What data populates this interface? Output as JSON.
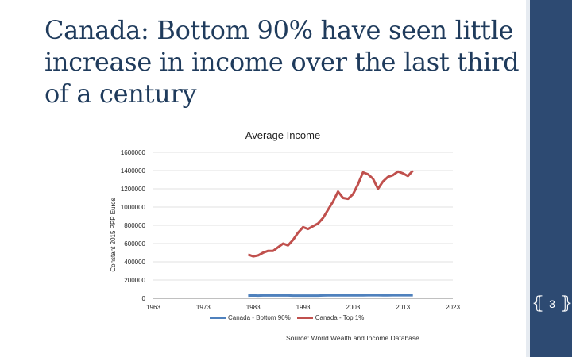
{
  "slide": {
    "title": "Canada:  Bottom 90% have seen little increase in income over the last third of a century",
    "page_number": "3",
    "source": "Source: World Wealth and Income Database"
  },
  "colors": {
    "sidebar": "#2d4a72",
    "title": "#1f3b5c",
    "bottom90": "#4f81bd",
    "top1": "#c0504d"
  },
  "chart_data": {
    "type": "line",
    "title": "Average Income",
    "xlabel": "",
    "ylabel": "Constant 2015 PPP Euros",
    "xlim": [
      1963,
      2023
    ],
    "ylim": [
      0,
      1600000
    ],
    "xticks": [
      "1963",
      "1973",
      "1983",
      "1993",
      "2003",
      "2013",
      "2023"
    ],
    "yticks": [
      "0",
      "200000",
      "400000",
      "600000",
      "800000",
      "1000000",
      "1200000",
      "1400000",
      "1600000"
    ],
    "grid": "horizontal",
    "legend": "bottom",
    "series": [
      {
        "name": "Canada - Bottom 90%",
        "color": "#4f81bd",
        "x": [
          1982,
          1983,
          1984,
          1985,
          1986,
          1987,
          1988,
          1989,
          1990,
          1991,
          1992,
          1993,
          1994,
          1995,
          1996,
          1997,
          1998,
          1999,
          2000,
          2001,
          2002,
          2003,
          2004,
          2005,
          2006,
          2007,
          2008,
          2009,
          2010,
          2011,
          2012,
          2013,
          2014,
          2015
        ],
        "y": [
          30000,
          31000,
          30000,
          31000,
          31000,
          31000,
          31000,
          31000,
          31000,
          30000,
          30000,
          30000,
          30000,
          30000,
          30000,
          31000,
          32000,
          32000,
          33000,
          33000,
          33000,
          33000,
          33000,
          33000,
          34000,
          34000,
          34000,
          33000,
          33000,
          34000,
          34000,
          34000,
          34000,
          34000
        ]
      },
      {
        "name": "Canada - Top 1%",
        "color": "#c0504d",
        "x": [
          1982,
          1983,
          1984,
          1985,
          1986,
          1987,
          1988,
          1989,
          1990,
          1991,
          1992,
          1993,
          1994,
          1995,
          1996,
          1997,
          1998,
          1999,
          2000,
          2001,
          2002,
          2003,
          2004,
          2005,
          2006,
          2007,
          2008,
          2009,
          2010,
          2011,
          2012,
          2013,
          2014,
          2015
        ],
        "y": [
          480000,
          460000,
          470000,
          500000,
          520000,
          520000,
          560000,
          600000,
          580000,
          640000,
          720000,
          780000,
          760000,
          790000,
          820000,
          880000,
          970000,
          1060000,
          1170000,
          1100000,
          1090000,
          1140000,
          1250000,
          1380000,
          1360000,
          1310000,
          1200000,
          1280000,
          1330000,
          1350000,
          1390000,
          1370000,
          1340000,
          1400000
        ]
      }
    ]
  }
}
